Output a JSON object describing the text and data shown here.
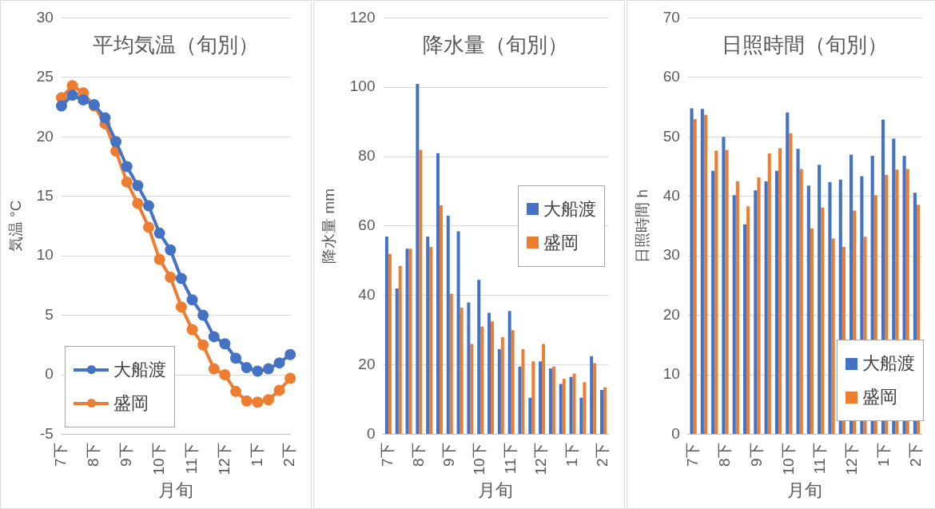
{
  "chart_data": [
    {
      "type": "line",
      "title": "平均気温（旬別）",
      "xlabel": "月旬",
      "ylabel": "気温 °C",
      "categories": [
        "7下",
        null,
        null,
        "8下",
        null,
        null,
        "9下",
        null,
        null,
        "10下",
        null,
        null,
        "11下",
        null,
        null,
        "12下",
        null,
        null,
        "1下",
        null,
        null,
        "2下"
      ],
      "series": [
        {
          "name": "大船渡",
          "color": "#4472c4",
          "values": [
            22.6,
            23.5,
            23.1,
            22.7,
            21.6,
            19.6,
            17.5,
            15.9,
            14.2,
            11.9,
            10.5,
            8.1,
            6.3,
            5.0,
            3.2,
            2.6,
            1.4,
            0.6,
            0.3,
            0.5,
            1.0,
            1.7
          ]
        },
        {
          "name": "盛岡",
          "color": "#ed7d31",
          "values": [
            23.3,
            24.3,
            23.7,
            22.6,
            21.1,
            18.8,
            16.2,
            14.4,
            12.4,
            9.7,
            8.2,
            5.7,
            3.8,
            2.5,
            0.5,
            0,
            -1.4,
            -2.2,
            -2.3,
            -2.1,
            -1.3,
            -0.3
          ]
        }
      ],
      "ylim": [
        -5,
        30
      ],
      "yticks": [
        -5,
        0,
        5,
        10,
        15,
        20,
        25,
        30
      ],
      "grid": "y",
      "legend": "bottom left",
      "marker": "circle"
    },
    {
      "type": "bar",
      "title": "降水量（旬別）",
      "xlabel": "月旬",
      "ylabel": "降水量 mm",
      "categories": [
        "7下",
        null,
        null,
        "8下",
        null,
        null,
        "9下",
        null,
        null,
        "10下",
        null,
        null,
        "11下",
        null,
        null,
        "12下",
        null,
        null,
        "1下",
        null,
        null,
        "2下"
      ],
      "series": [
        {
          "name": "大船渡",
          "color": "#4472c4",
          "values": [
            57,
            42,
            53.5,
            101,
            57,
            81,
            63,
            58.5,
            38,
            44.5,
            35,
            24.5,
            35.5,
            19.5,
            10.5,
            21,
            19,
            14.5,
            16.5,
            10.5,
            22.5,
            12.8
          ]
        },
        {
          "name": "盛岡",
          "color": "#ed7d31",
          "values": [
            52,
            48.5,
            53.5,
            82,
            54,
            66,
            40.5,
            36.5,
            26,
            31,
            32.5,
            28,
            30,
            24.5,
            21,
            26,
            19.5,
            16,
            17.5,
            15,
            20.5,
            13.5
          ]
        }
      ],
      "ylim": [
        0,
        120
      ],
      "yticks": [
        0,
        20,
        40,
        60,
        80,
        100,
        120
      ],
      "grid": "y",
      "legend": "right"
    },
    {
      "type": "bar",
      "title": "日照時間（旬別）",
      "xlabel": "月旬",
      "ylabel": "日照時間 h",
      "categories": [
        "7下",
        null,
        null,
        "8下",
        null,
        null,
        "9下",
        null,
        null,
        "10下",
        null,
        null,
        "11下",
        null,
        null,
        "12下",
        null,
        null,
        "1下",
        null,
        null,
        "2下"
      ],
      "series": [
        {
          "name": "大船渡",
          "color": "#4472c4",
          "values": [
            54.8,
            54.7,
            44.3,
            50,
            40.2,
            35.3,
            41,
            42.5,
            44.3,
            54.1,
            48,
            41.8,
            45.3,
            42.4,
            42.8,
            47,
            43.4,
            46.8,
            52.9,
            49.7,
            46.8,
            40.6
          ]
        },
        {
          "name": "盛岡",
          "color": "#ed7d31",
          "values": [
            53,
            53.7,
            47.7,
            47.8,
            42.5,
            38.3,
            43.2,
            47.2,
            48.1,
            50.6,
            44.6,
            34.6,
            38.1,
            32.9,
            31.5,
            37.6,
            33.2,
            40.2,
            43.6,
            44.5,
            44.6,
            38.6
          ]
        }
      ],
      "ylim": [
        0,
        70
      ],
      "yticks": [
        0,
        10,
        20,
        30,
        40,
        50,
        60,
        70
      ],
      "grid": "y",
      "legend": "bottom right"
    }
  ]
}
